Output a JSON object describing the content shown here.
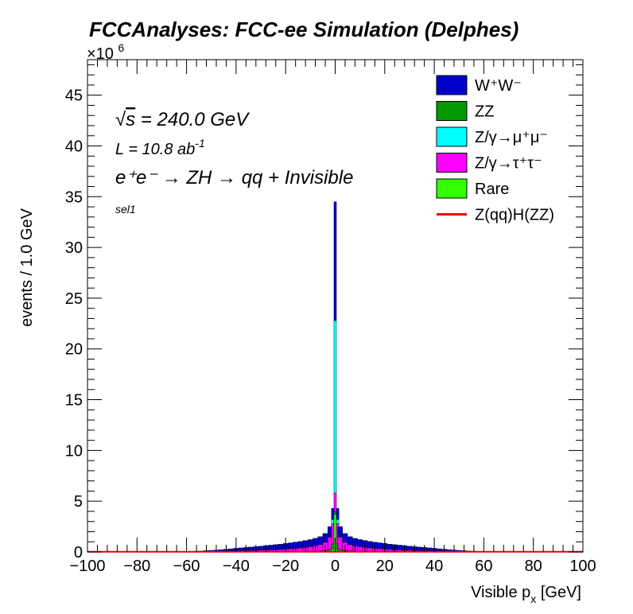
{
  "chart_data": {
    "type": "bar",
    "title": "FCCAnalyses: FCC-ee Simulation (Delphes)",
    "xlabel_main": "Visible p",
    "xlabel_sub": "x",
    "xlabel_unit": " [GeV]",
    "ylabel": "events / 1.0 GeV",
    "y_multiplier_prefix": "×10",
    "y_multiplier_exp": "6",
    "xlim": [
      -100,
      100
    ],
    "ylim": [
      0,
      48.5
    ],
    "x_ticks": [
      -100,
      -80,
      -60,
      -40,
      -20,
      0,
      20,
      40,
      60,
      80,
      100
    ],
    "x_tick_labels": [
      "−100",
      "−80",
      "−60",
      "−40",
      "−20",
      "0",
      "20",
      "40",
      "60",
      "80",
      "100"
    ],
    "y_ticks": [
      0,
      5,
      10,
      15,
      20,
      25,
      30,
      35,
      40,
      45
    ],
    "y_tick_labels": [
      "0",
      "5",
      "10",
      "15",
      "20",
      "25",
      "30",
      "35",
      "40",
      "45"
    ],
    "annotations": {
      "sqrt_symbol": "√",
      "sqrt_s": "s",
      "energy": " = 240.0 GeV",
      "lumi_main": "L = 10.8 ab",
      "lumi_exp": "-1",
      "process": "e⁺e⁻ → ZH → qq + Invisible",
      "selection": "sel1"
    },
    "legend_position": "top-right",
    "legend": [
      {
        "label": "W⁺W⁻",
        "type": "fill",
        "color": "#0000cc"
      },
      {
        "label": "ZZ",
        "type": "fill",
        "color": "#009900"
      },
      {
        "label": "Z/γ→μ⁺μ⁻",
        "type": "fill",
        "color": "#00ffff"
      },
      {
        "label": "Z/γ→τ⁺τ⁻",
        "type": "fill",
        "color": "#ff00ff"
      },
      {
        "label": "Rare",
        "type": "fill",
        "color": "#33ff00"
      },
      {
        "label": "Z(qq)H(ZZ)",
        "type": "line",
        "color": "#ee0000"
      }
    ],
    "stack_order_bottom_to_top": [
      "Rare",
      "ZZ",
      "Z/γ→τ⁺τ⁻",
      "Z/γ→μ⁺μ⁻",
      "W⁺W⁻"
    ],
    "bins": [
      {
        "x": -60,
        "rare": 0,
        "zz": 0.01,
        "tautau": 0.02,
        "mumu": 0,
        "ww": 0.02
      },
      {
        "x": -58,
        "rare": 0,
        "zz": 0.01,
        "tautau": 0.02,
        "mumu": 0,
        "ww": 0.03
      },
      {
        "x": -56,
        "rare": 0,
        "zz": 0.01,
        "tautau": 0.03,
        "mumu": 0,
        "ww": 0.04
      },
      {
        "x": -54,
        "rare": 0,
        "zz": 0.01,
        "tautau": 0.03,
        "mumu": 0,
        "ww": 0.06
      },
      {
        "x": -52,
        "rare": 0,
        "zz": 0.01,
        "tautau": 0.04,
        "mumu": 0,
        "ww": 0.08
      },
      {
        "x": -50,
        "rare": 0,
        "zz": 0.01,
        "tautau": 0.05,
        "mumu": 0,
        "ww": 0.1
      },
      {
        "x": -48,
        "rare": 0,
        "zz": 0.01,
        "tautau": 0.05,
        "mumu": 0,
        "ww": 0.13
      },
      {
        "x": -46,
        "rare": 0,
        "zz": 0.01,
        "tautau": 0.06,
        "mumu": 0,
        "ww": 0.16
      },
      {
        "x": -44,
        "rare": 0,
        "zz": 0.01,
        "tautau": 0.07,
        "mumu": 0,
        "ww": 0.19
      },
      {
        "x": -42,
        "rare": 0,
        "zz": 0.01,
        "tautau": 0.08,
        "mumu": 0,
        "ww": 0.22
      },
      {
        "x": -40,
        "rare": 0,
        "zz": 0.02,
        "tautau": 0.09,
        "mumu": 0,
        "ww": 0.25
      },
      {
        "x": -38,
        "rare": 0,
        "zz": 0.02,
        "tautau": 0.1,
        "mumu": 0,
        "ww": 0.28
      },
      {
        "x": -36,
        "rare": 0,
        "zz": 0.02,
        "tautau": 0.11,
        "mumu": 0,
        "ww": 0.31
      },
      {
        "x": -34,
        "rare": 0,
        "zz": 0.02,
        "tautau": 0.12,
        "mumu": 0,
        "ww": 0.34
      },
      {
        "x": -32,
        "rare": 0,
        "zz": 0.02,
        "tautau": 0.13,
        "mumu": 0,
        "ww": 0.37
      },
      {
        "x": -30,
        "rare": 0,
        "zz": 0.02,
        "tautau": 0.15,
        "mumu": 0,
        "ww": 0.4
      },
      {
        "x": -28,
        "rare": 0,
        "zz": 0.03,
        "tautau": 0.16,
        "mumu": 0,
        "ww": 0.43
      },
      {
        "x": -26,
        "rare": 0,
        "zz": 0.03,
        "tautau": 0.18,
        "mumu": 0,
        "ww": 0.46
      },
      {
        "x": -24,
        "rare": 0,
        "zz": 0.03,
        "tautau": 0.2,
        "mumu": 0,
        "ww": 0.49
      },
      {
        "x": -22,
        "rare": 0,
        "zz": 0.03,
        "tautau": 0.22,
        "mumu": 0,
        "ww": 0.52
      },
      {
        "x": -20,
        "rare": 0,
        "zz": 0.04,
        "tautau": 0.25,
        "mumu": 0,
        "ww": 0.55
      },
      {
        "x": -18,
        "rare": 0,
        "zz": 0.04,
        "tautau": 0.28,
        "mumu": 0,
        "ww": 0.58
      },
      {
        "x": -16,
        "rare": 0,
        "zz": 0.05,
        "tautau": 0.31,
        "mumu": 0,
        "ww": 0.61
      },
      {
        "x": -14,
        "rare": 0,
        "zz": 0.05,
        "tautau": 0.35,
        "mumu": 0,
        "ww": 0.64
      },
      {
        "x": -12,
        "rare": 0,
        "zz": 0.06,
        "tautau": 0.4,
        "mumu": 0,
        "ww": 0.67
      },
      {
        "x": -10,
        "rare": 0,
        "zz": 0.07,
        "tautau": 0.45,
        "mumu": 0,
        "ww": 0.7
      },
      {
        "x": -8,
        "rare": 0,
        "zz": 0.08,
        "tautau": 0.52,
        "mumu": 0,
        "ww": 0.74
      },
      {
        "x": -6,
        "rare": 0.01,
        "zz": 0.1,
        "tautau": 0.62,
        "mumu": 0,
        "ww": 0.78
      },
      {
        "x": -4,
        "rare": 0.02,
        "zz": 0.13,
        "tautau": 0.8,
        "mumu": 0.02,
        "ww": 0.85
      },
      {
        "x": -2,
        "rare": 0.05,
        "zz": 0.2,
        "tautau": 1.2,
        "mumu": 0.05,
        "ww": 1.0
      },
      {
        "x": -1,
        "rare": 0.3,
        "zz": 0.5,
        "tautau": 2.0,
        "mumu": 0.4,
        "ww": 1.1
      },
      {
        "x": 0,
        "rare": 3.7,
        "zz": 0.3,
        "tautau": 1.8,
        "mumu": 17.0,
        "ww": 11.7
      },
      {
        "x": 1,
        "rare": 0.3,
        "zz": 0.5,
        "tautau": 2.0,
        "mumu": 0.4,
        "ww": 1.1
      },
      {
        "x": 2,
        "rare": 0.05,
        "zz": 0.2,
        "tautau": 1.2,
        "mumu": 0.05,
        "ww": 1.0
      },
      {
        "x": 4,
        "rare": 0.02,
        "zz": 0.13,
        "tautau": 0.8,
        "mumu": 0.02,
        "ww": 0.85
      },
      {
        "x": 6,
        "rare": 0.01,
        "zz": 0.1,
        "tautau": 0.62,
        "mumu": 0,
        "ww": 0.78
      },
      {
        "x": 8,
        "rare": 0,
        "zz": 0.08,
        "tautau": 0.52,
        "mumu": 0,
        "ww": 0.74
      },
      {
        "x": 10,
        "rare": 0,
        "zz": 0.07,
        "tautau": 0.45,
        "mumu": 0,
        "ww": 0.7
      },
      {
        "x": 12,
        "rare": 0,
        "zz": 0.06,
        "tautau": 0.4,
        "mumu": 0,
        "ww": 0.67
      },
      {
        "x": 14,
        "rare": 0,
        "zz": 0.05,
        "tautau": 0.35,
        "mumu": 0,
        "ww": 0.64
      },
      {
        "x": 16,
        "rare": 0,
        "zz": 0.05,
        "tautau": 0.31,
        "mumu": 0,
        "ww": 0.61
      },
      {
        "x": 18,
        "rare": 0,
        "zz": 0.04,
        "tautau": 0.28,
        "mumu": 0,
        "ww": 0.58
      },
      {
        "x": 20,
        "rare": 0,
        "zz": 0.04,
        "tautau": 0.25,
        "mumu": 0,
        "ww": 0.55
      },
      {
        "x": 22,
        "rare": 0,
        "zz": 0.03,
        "tautau": 0.22,
        "mumu": 0,
        "ww": 0.52
      },
      {
        "x": 24,
        "rare": 0,
        "zz": 0.03,
        "tautau": 0.2,
        "mumu": 0,
        "ww": 0.49
      },
      {
        "x": 26,
        "rare": 0,
        "zz": 0.03,
        "tautau": 0.18,
        "mumu": 0,
        "ww": 0.46
      },
      {
        "x": 28,
        "rare": 0,
        "zz": 0.03,
        "tautau": 0.16,
        "mumu": 0,
        "ww": 0.43
      },
      {
        "x": 30,
        "rare": 0,
        "zz": 0.02,
        "tautau": 0.15,
        "mumu": 0,
        "ww": 0.4
      },
      {
        "x": 32,
        "rare": 0,
        "zz": 0.02,
        "tautau": 0.13,
        "mumu": 0,
        "ww": 0.37
      },
      {
        "x": 34,
        "rare": 0,
        "zz": 0.02,
        "tautau": 0.12,
        "mumu": 0,
        "ww": 0.34
      },
      {
        "x": 36,
        "rare": 0,
        "zz": 0.02,
        "tautau": 0.11,
        "mumu": 0,
        "ww": 0.31
      },
      {
        "x": 38,
        "rare": 0,
        "zz": 0.02,
        "tautau": 0.1,
        "mumu": 0,
        "ww": 0.28
      },
      {
        "x": 40,
        "rare": 0,
        "zz": 0.02,
        "tautau": 0.09,
        "mumu": 0,
        "ww": 0.25
      },
      {
        "x": 42,
        "rare": 0,
        "zz": 0.01,
        "tautau": 0.08,
        "mumu": 0,
        "ww": 0.22
      },
      {
        "x": 44,
        "rare": 0,
        "zz": 0.01,
        "tautau": 0.07,
        "mumu": 0,
        "ww": 0.19
      },
      {
        "x": 46,
        "rare": 0,
        "zz": 0.01,
        "tautau": 0.06,
        "mumu": 0,
        "ww": 0.16
      },
      {
        "x": 48,
        "rare": 0,
        "zz": 0.01,
        "tautau": 0.05,
        "mumu": 0,
        "ww": 0.13
      },
      {
        "x": 50,
        "rare": 0,
        "zz": 0.01,
        "tautau": 0.05,
        "mumu": 0,
        "ww": 0.1
      },
      {
        "x": 52,
        "rare": 0,
        "zz": 0.01,
        "tautau": 0.04,
        "mumu": 0,
        "ww": 0.08
      },
      {
        "x": 54,
        "rare": 0,
        "zz": 0.01,
        "tautau": 0.03,
        "mumu": 0,
        "ww": 0.06
      },
      {
        "x": 56,
        "rare": 0,
        "zz": 0.01,
        "tautau": 0.03,
        "mumu": 0,
        "ww": 0.04
      },
      {
        "x": 58,
        "rare": 0,
        "zz": 0.01,
        "tautau": 0.02,
        "mumu": 0,
        "ww": 0.03
      },
      {
        "x": 60,
        "rare": 0,
        "zz": 0.01,
        "tautau": 0.02,
        "mumu": 0,
        "ww": 0.02
      }
    ],
    "signal_line_value": 0.02
  }
}
